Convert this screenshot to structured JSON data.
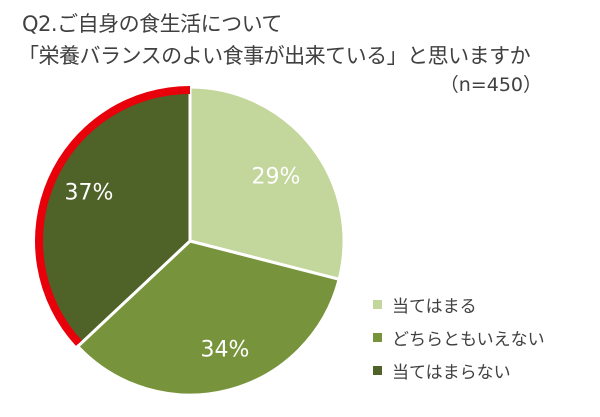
{
  "title": {
    "line1": "Q2.ご自身の食生活について",
    "line2": "「栄養バランスのよい食事が出来ている」と思いますか",
    "sample_size": "（n=450）"
  },
  "colors": {
    "light_green": "#c3d69b",
    "mid_green": "#77933c",
    "dark_green": "#4f6228",
    "highlight_red": "#e8000b"
  },
  "legend": {
    "items": [
      {
        "label": "当てはまる",
        "color": "#c3d69b"
      },
      {
        "label": "どちらともいえない",
        "color": "#77933c"
      },
      {
        "label": "当てはまらない",
        "color": "#4f6228"
      }
    ]
  },
  "labels": {
    "s0": "29%",
    "s1": "34%",
    "s2": "37%"
  },
  "chart_data": {
    "type": "pie",
    "title": "Q2.ご自身の食生活について「栄養バランスのよい食事が出来ている」と思いますか",
    "subtitle": "（n=450）",
    "categories": [
      "当てはまる",
      "どちらともいえない",
      "当てはまらない"
    ],
    "values": [
      29,
      34,
      37
    ],
    "unit": "%",
    "colors": [
      "#c3d69b",
      "#77933c",
      "#4f6228"
    ],
    "highlighted_slice": "当てはまらない",
    "legend_position": "right-bottom",
    "start_angle": "12 o'clock, clockwise"
  }
}
